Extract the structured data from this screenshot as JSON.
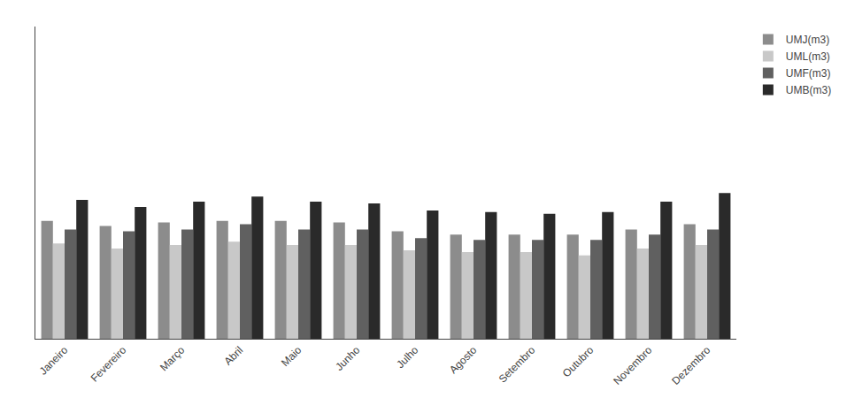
{
  "chart_data": {
    "type": "bar",
    "categories": [
      "Janeiro",
      "Fevereiro",
      "Março",
      "Abril",
      "Maio",
      "Junho",
      "Julho",
      "Agosto",
      "Setembro",
      "Outubro",
      "Novembro",
      "Dezembro"
    ],
    "series": [
      {
        "name": "UMJ(m3)",
        "color": "#8C8C8C",
        "values": [
          68,
          65,
          67,
          68,
          68,
          67,
          62,
          60,
          60,
          60,
          63,
          66
        ]
      },
      {
        "name": "UML(m3)",
        "color": "#C8C8C8",
        "values": [
          55,
          52,
          54,
          56,
          54,
          54,
          51,
          50,
          50,
          48,
          52,
          54
        ]
      },
      {
        "name": "UMF(m3)",
        "color": "#606060",
        "values": [
          63,
          62,
          63,
          66,
          63,
          63,
          58,
          57,
          57,
          57,
          60,
          63
        ]
      },
      {
        "name": "UMB(m3)",
        "color": "#2A2A2A",
        "values": [
          80,
          76,
          79,
          82,
          79,
          78,
          74,
          73,
          72,
          73,
          79,
          84
        ]
      }
    ],
    "ylim": [
      0,
      180
    ],
    "tick_labels": "x",
    "grid": false,
    "legend": "right"
  }
}
